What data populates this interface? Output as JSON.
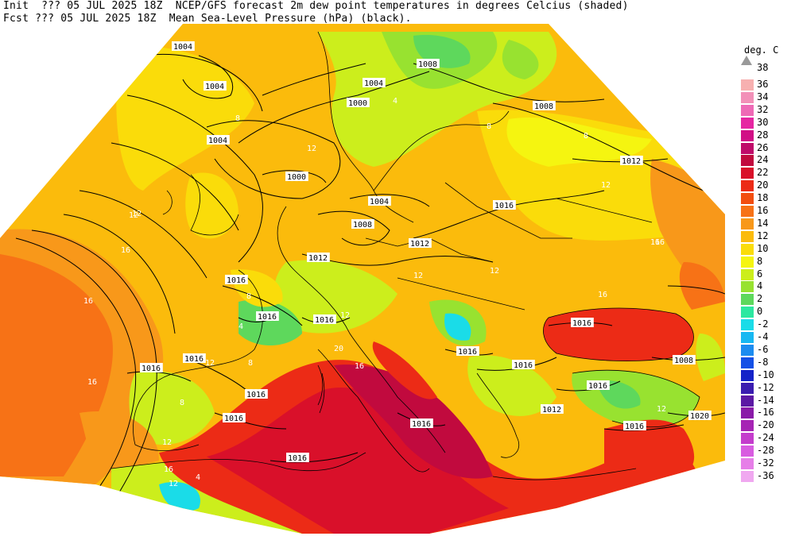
{
  "header": {
    "line1": "Init  ??? 05 JUL 2025 18Z  NCEP/GFS forecast 2m dew point temperatures in degrees Celcius (shaded)",
    "line2": "Fcst ??? 05 JUL 2025 18Z  Mean Sea-Level Pressure (hPa) (black)."
  },
  "legend": {
    "title": "deg. C",
    "top_label": "38",
    "items": [
      {
        "label": "36",
        "color": "#f7b0b0"
      },
      {
        "label": "34",
        "color": "#f290b8"
      },
      {
        "label": "32",
        "color": "#ee6ab6"
      },
      {
        "label": "30",
        "color": "#e626a2"
      },
      {
        "label": "28",
        "color": "#d10f86"
      },
      {
        "label": "26",
        "color": "#bf0a6a"
      },
      {
        "label": "24",
        "color": "#c10a3e"
      },
      {
        "label": "22",
        "color": "#d9102a"
      },
      {
        "label": "20",
        "color": "#ec2b16"
      },
      {
        "label": "18",
        "color": "#f24e10"
      },
      {
        "label": "16",
        "color": "#f77216"
      },
      {
        "label": "14",
        "color": "#f8981a"
      },
      {
        "label": "12",
        "color": "#fbbb0c"
      },
      {
        "label": "10",
        "color": "#fadc0a"
      },
      {
        "label": "8",
        "color": "#f5f510"
      },
      {
        "label": "6",
        "color": "#ccee1c"
      },
      {
        "label": "4",
        "color": "#98e230"
      },
      {
        "label": "2",
        "color": "#5ed85c"
      },
      {
        "label": "0",
        "color": "#2ce8a0"
      },
      {
        "label": "-2",
        "color": "#1adce8"
      },
      {
        "label": "-4",
        "color": "#18b8f2"
      },
      {
        "label": "-6",
        "color": "#1c8cf0"
      },
      {
        "label": "-8",
        "color": "#1450e6"
      },
      {
        "label": "-10",
        "color": "#1422c8"
      },
      {
        "label": "-12",
        "color": "#3a1cb0"
      },
      {
        "label": "-14",
        "color": "#5c18a4"
      },
      {
        "label": "-16",
        "color": "#8a1aa8"
      },
      {
        "label": "-20",
        "color": "#a624b4"
      },
      {
        "label": "-24",
        "color": "#c43ccc"
      },
      {
        "label": "-28",
        "color": "#d85ce0"
      },
      {
        "label": "-32",
        "color": "#e67ee8"
      },
      {
        "label": "-36",
        "color": "#f0a8f0"
      }
    ]
  },
  "isobar_labels": [
    {
      "text": "1004"
    },
    {
      "text": "1004"
    },
    {
      "text": "1008"
    },
    {
      "text": "1004"
    },
    {
      "text": "1000"
    },
    {
      "text": "1008"
    },
    {
      "text": "1004"
    },
    {
      "text": "1000"
    },
    {
      "text": "1004"
    },
    {
      "text": "1008"
    },
    {
      "text": "1012"
    },
    {
      "text": "1016"
    },
    {
      "text": "1012"
    },
    {
      "text": "1012"
    },
    {
      "text": "1016"
    },
    {
      "text": "1016"
    },
    {
      "text": "1016"
    },
    {
      "text": "1016"
    },
    {
      "text": "1016"
    },
    {
      "text": "1016"
    },
    {
      "text": "1016"
    },
    {
      "text": "1016"
    },
    {
      "text": "1016"
    },
    {
      "text": "1016"
    },
    {
      "text": "1016"
    },
    {
      "text": "1016"
    },
    {
      "text": "1016"
    },
    {
      "text": "1008"
    },
    {
      "text": "1012"
    },
    {
      "text": "1016"
    },
    {
      "text": "1020"
    }
  ],
  "dewpoint_labels": [
    {
      "text": "12"
    },
    {
      "text": "16"
    },
    {
      "text": "16"
    },
    {
      "text": "16"
    },
    {
      "text": "12"
    },
    {
      "text": "12"
    },
    {
      "text": "8"
    },
    {
      "text": "8"
    },
    {
      "text": "4"
    },
    {
      "text": "8"
    },
    {
      "text": "12"
    },
    {
      "text": "16"
    },
    {
      "text": "12"
    },
    {
      "text": "8"
    },
    {
      "text": "12"
    },
    {
      "text": "16"
    },
    {
      "text": "12"
    },
    {
      "text": "8"
    },
    {
      "text": "4"
    },
    {
      "text": "12"
    },
    {
      "text": "16"
    },
    {
      "text": "20"
    },
    {
      "text": "16"
    },
    {
      "text": "12"
    },
    {
      "text": "16"
    },
    {
      "text": "12"
    },
    {
      "text": "12"
    },
    {
      "text": "4"
    },
    {
      "text": "8"
    }
  ]
}
